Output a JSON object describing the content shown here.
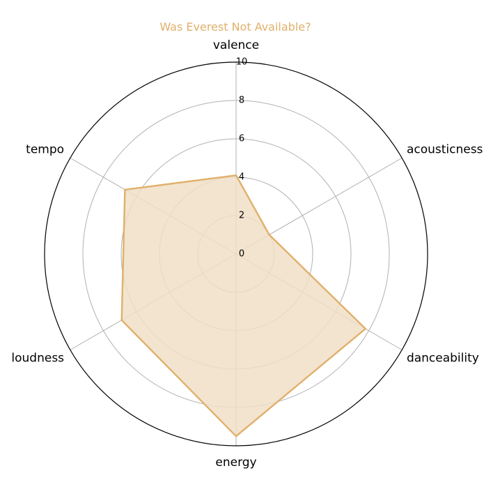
{
  "chart_data": {
    "type": "radar",
    "title": "Was Everest Not Available?",
    "axes": [
      "valence",
      "acousticness",
      "danceability",
      "energy",
      "loudness",
      "tempo"
    ],
    "series": [
      {
        "values": [
          4.1,
          2.0,
          7.8,
          9.5,
          6.9,
          6.7
        ]
      }
    ],
    "rlim": [
      0,
      10
    ],
    "r_ticks": [
      "0",
      "2",
      "4",
      "6",
      "8",
      "10"
    ],
    "grid": true,
    "colors": {
      "series": "#e0b06a",
      "fill": "#f0dfc7",
      "title": "#e0b06a",
      "grid": "#b0b0b0",
      "frame": "#000000"
    }
  }
}
